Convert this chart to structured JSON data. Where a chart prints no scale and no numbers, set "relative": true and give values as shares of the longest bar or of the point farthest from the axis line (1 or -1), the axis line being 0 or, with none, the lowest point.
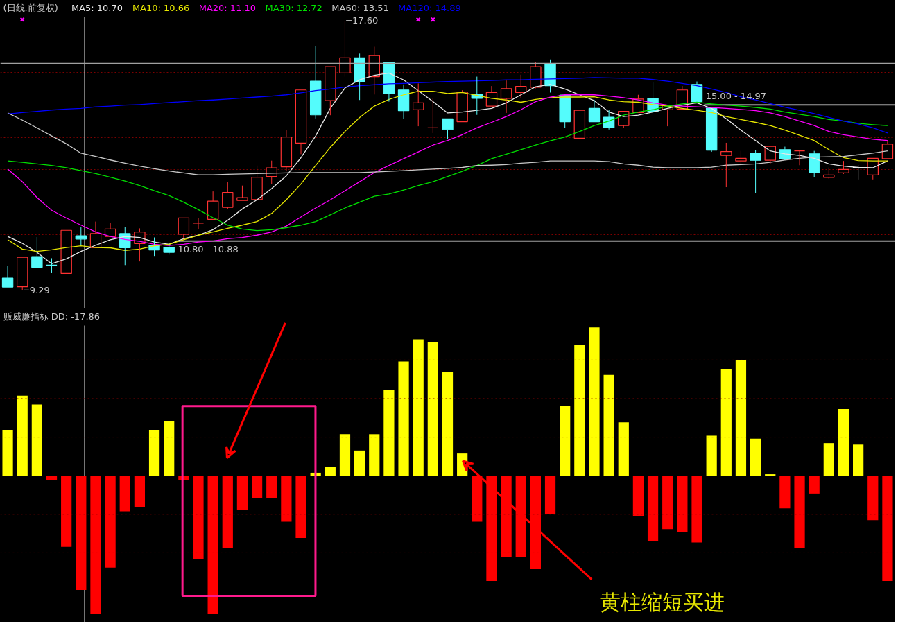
{
  "chart_data": [
    {
      "type": "candlestick",
      "title": "(日线.前复权)",
      "legend": "top left",
      "grid": "y",
      "tick_labels": false,
      "yticks": [
        {
          "value": 11,
          "label": null
        },
        {
          "value": 12,
          "label": null
        },
        {
          "value": 13,
          "label": null
        },
        {
          "value": 14,
          "label": null
        },
        {
          "value": 15,
          "label": null
        },
        {
          "value": 16,
          "label": null
        },
        {
          "value": 17,
          "label": null
        }
      ],
      "categories": [
        null,
        null,
        null,
        null,
        null,
        null,
        null,
        null,
        null,
        null,
        null,
        null,
        null,
        null,
        null,
        null,
        null,
        null,
        null,
        null,
        null,
        null,
        null,
        null,
        null,
        null,
        null,
        null,
        null,
        null,
        null,
        null,
        null,
        null,
        null,
        null,
        null,
        null,
        null,
        null,
        null,
        null,
        null,
        null,
        null,
        null,
        null,
        null,
        null,
        null,
        null,
        null,
        null,
        null,
        null,
        null,
        null,
        null,
        null,
        null,
        null
      ],
      "ohlc": [
        [
          9.66,
          10.03,
          9.38,
          9.38
        ],
        [
          9.39,
          10.3,
          9.29,
          10.3
        ],
        [
          10.32,
          10.92,
          9.99,
          9.99
        ],
        [
          10.06,
          10.27,
          9.81,
          10.06
        ],
        [
          9.8,
          11.13,
          9.8,
          11.13
        ],
        [
          10.96,
          11.22,
          10.66,
          10.86
        ],
        [
          10.6,
          11.4,
          10.6,
          11.03
        ],
        [
          10.94,
          11.37,
          10.94,
          11.17
        ],
        [
          11.03,
          11.24,
          10.06,
          10.59
        ],
        [
          10.72,
          11.19,
          10.17,
          11.08
        ],
        [
          10.67,
          10.91,
          10.34,
          10.52
        ],
        [
          10.61,
          10.73,
          10.38,
          10.45
        ],
        [
          11.01,
          11.51,
          10.87,
          11.51
        ],
        [
          11.35,
          11.51,
          11.17,
          11.35
        ],
        [
          11.47,
          12.33,
          11.47,
          12.03
        ],
        [
          11.84,
          12.61,
          11.79,
          12.3
        ],
        [
          12.05,
          12.51,
          12.05,
          12.14
        ],
        [
          12.08,
          13.13,
          12.08,
          12.77
        ],
        [
          12.79,
          13.28,
          12.56,
          13.06
        ],
        [
          13.09,
          14.22,
          12.95,
          14.01
        ],
        [
          13.82,
          15.46,
          13.48,
          15.46
        ],
        [
          15.73,
          16.81,
          14.58,
          14.69
        ],
        [
          15.13,
          16.18,
          14.68,
          16.18
        ],
        [
          15.98,
          17.6,
          15.87,
          16.45
        ],
        [
          16.45,
          16.58,
          15.15,
          15.72
        ],
        [
          15.87,
          16.79,
          15.32,
          16.52
        ],
        [
          16.31,
          16.31,
          15.1,
          15.35
        ],
        [
          15.46,
          15.63,
          14.57,
          14.82
        ],
        [
          14.85,
          15.66,
          14.34,
          15.06
        ],
        [
          14.29,
          15.2,
          14.13,
          14.29
        ],
        [
          14.57,
          14.57,
          13.94,
          14.24
        ],
        [
          14.48,
          15.45,
          14.48,
          15.39
        ],
        [
          15.32,
          15.87,
          14.69,
          15.2
        ],
        [
          14.96,
          15.58,
          14.96,
          15.38
        ],
        [
          15.2,
          15.75,
          14.75,
          15.5
        ],
        [
          15.38,
          15.93,
          15.2,
          15.57
        ],
        [
          15.54,
          16.33,
          15.51,
          16.18
        ],
        [
          16.26,
          16.4,
          15.38,
          15.59
        ],
        [
          15.3,
          15.3,
          14.29,
          14.48
        ],
        [
          13.97,
          14.83,
          13.97,
          14.83
        ],
        [
          14.89,
          15.15,
          14.48,
          14.48
        ],
        [
          14.62,
          14.85,
          14.24,
          14.29
        ],
        [
          14.36,
          14.8,
          14.29,
          14.8
        ],
        [
          14.76,
          15.31,
          14.76,
          15.18
        ],
        [
          15.2,
          15.7,
          14.75,
          14.8
        ],
        [
          14.85,
          14.99,
          14.34,
          14.99
        ],
        [
          14.87,
          15.58,
          14.87,
          15.46
        ],
        [
          15.63,
          15.72,
          15.1,
          15.1
        ],
        [
          14.9,
          14.9,
          13.55,
          13.6
        ],
        [
          13.44,
          13.83,
          12.46,
          13.56
        ],
        [
          13.27,
          13.58,
          13.18,
          13.35
        ],
        [
          13.51,
          13.61,
          12.28,
          13.29
        ],
        [
          13.29,
          13.72,
          13.18,
          13.72
        ],
        [
          13.62,
          13.71,
          13.3,
          13.35
        ],
        [
          13.58,
          13.58,
          13.14,
          13.58
        ],
        [
          13.49,
          13.58,
          12.76,
          12.9
        ],
        [
          12.76,
          13.07,
          12.72,
          12.84
        ],
        [
          12.9,
          13.27,
          12.87,
          13.01
        ],
        [
          13.07,
          13.14,
          12.7,
          13.07
        ],
        [
          12.84,
          13.35,
          12.7,
          13.35
        ],
        [
          13.34,
          13.89,
          13.34,
          13.79
        ]
      ],
      "colors": [
        "#54fcfc",
        "#ff3232",
        "#54fcfc",
        "#54fcfc",
        "#ff3232",
        "#54fcfc",
        "#ff3232",
        "#ff3232",
        "#54fcfc",
        "#ff3232",
        "#54fcfc",
        "#54fcfc",
        "#ff3232",
        "#ff3232",
        "#ff3232",
        "#ff3232",
        "#ff3232",
        "#ff3232",
        "#ff3232",
        "#ff3232",
        "#ff3232",
        "#54fcfc",
        "#ff3232",
        "#ff3232",
        "#54fcfc",
        "#ff3232",
        "#54fcfc",
        "#54fcfc",
        "#ff3232",
        "#ff3232",
        "#54fcfc",
        "#ff3232",
        "#54fcfc",
        "#ff3232",
        "#ff3232",
        "#ff3232",
        "#ff3232",
        "#54fcfc",
        "#54fcfc",
        "#ff3232",
        "#54fcfc",
        "#54fcfc",
        "#ff3232",
        "#ff3232",
        "#54fcfc",
        "#ff3232",
        "#ff3232",
        "#54fcfc",
        "#54fcfc",
        "#ff3232",
        "#ff3232",
        "#54fcfc",
        "#ff3232",
        "#54fcfc",
        "#ff3232",
        "#54fcfc",
        "#ff3232",
        "#ff3232",
        "#ffffff",
        "#ff3232",
        "#ff3232"
      ],
      "series": [
        {
          "type": "line",
          "name": "MA5: 10.70",
          "color": "#e8e8e8",
          "values": [
            10.94,
            10.73,
            10.45,
            10.1,
            10.25,
            10.48,
            10.67,
            10.84,
            10.94,
            10.91,
            10.77,
            10.7,
            10.87,
            10.98,
            11.15,
            11.44,
            11.79,
            12.07,
            12.42,
            12.81,
            13.37,
            14.04,
            14.89,
            15.52,
            15.77,
            15.91,
            15.98,
            15.77,
            15.44,
            15.1,
            14.75,
            14.78,
            14.83,
            14.89,
            15.06,
            15.31,
            15.56,
            15.63,
            15.49,
            15.31,
            15.13,
            14.78,
            14.64,
            14.68,
            14.78,
            14.89,
            14.99,
            15.06,
            14.89,
            14.57,
            14.22,
            13.9,
            13.58,
            13.49,
            13.44,
            13.35,
            13.18,
            13.11,
            13.07,
            13.06,
            13.27
          ]
        },
        {
          "type": "line",
          "name": "MA10: 10.66",
          "color": "#e6e600",
          "values": [
            10.84,
            10.55,
            10.48,
            10.53,
            10.6,
            10.65,
            10.6,
            10.59,
            10.51,
            10.55,
            10.65,
            10.7,
            10.84,
            10.98,
            11.08,
            11.19,
            11.29,
            11.4,
            11.65,
            12.07,
            12.56,
            13.13,
            13.69,
            14.18,
            14.61,
            14.96,
            15.17,
            15.31,
            15.42,
            15.42,
            15.35,
            15.38,
            15.29,
            15.2,
            15.15,
            15.08,
            15.17,
            15.22,
            15.24,
            15.24,
            15.25,
            15.15,
            15.1,
            15.08,
            15.01,
            14.96,
            14.89,
            14.83,
            14.76,
            14.64,
            14.55,
            14.46,
            14.36,
            14.22,
            14.06,
            13.9,
            13.62,
            13.37,
            13.28,
            13.27,
            13.27
          ]
        },
        {
          "type": "line",
          "name": "MA20: 11.10",
          "color": "#ff00ff",
          "values": [
            13.02,
            12.63,
            12.14,
            11.75,
            11.51,
            11.29,
            11.08,
            10.94,
            10.85,
            10.79,
            10.7,
            10.66,
            10.7,
            10.77,
            10.8,
            10.87,
            10.91,
            10.98,
            11.08,
            11.26,
            11.54,
            11.82,
            12.07,
            12.35,
            12.63,
            12.91,
            13.13,
            13.34,
            13.55,
            13.76,
            13.9,
            14.08,
            14.29,
            14.46,
            14.64,
            14.85,
            15.1,
            15.24,
            15.31,
            15.31,
            15.31,
            15.27,
            15.22,
            15.15,
            15.06,
            14.99,
            14.96,
            14.94,
            14.92,
            14.89,
            14.86,
            14.82,
            14.75,
            14.64,
            14.5,
            14.36,
            14.18,
            14.08,
            14.01,
            13.94,
            13.9
          ]
        },
        {
          "type": "line",
          "name": "MA30: 12.72",
          "color": "#00e000",
          "values": [
            13.27,
            13.23,
            13.18,
            13.13,
            13.06,
            12.97,
            12.88,
            12.77,
            12.65,
            12.51,
            12.35,
            12.2,
            12.0,
            11.77,
            11.52,
            11.29,
            11.17,
            11.12,
            11.15,
            11.21,
            11.29,
            11.4,
            11.61,
            11.82,
            12.0,
            12.18,
            12.25,
            12.37,
            12.51,
            12.63,
            12.79,
            12.95,
            13.13,
            13.34,
            13.48,
            13.62,
            13.76,
            13.89,
            14.01,
            14.18,
            14.36,
            14.5,
            14.68,
            14.78,
            14.85,
            14.96,
            15.03,
            15.08,
            15.03,
            14.99,
            14.96,
            14.92,
            14.87,
            14.78,
            14.71,
            14.64,
            14.55,
            14.5,
            14.43,
            14.39,
            14.36
          ]
        },
        {
          "type": "line",
          "name": "MA60: 13.51",
          "color": "#c8c8c8",
          "values": [
            14.75,
            14.53,
            14.29,
            14.04,
            13.8,
            13.51,
            13.41,
            13.3,
            13.2,
            13.11,
            13.03,
            12.96,
            12.9,
            12.84,
            12.84,
            12.86,
            12.87,
            12.88,
            12.89,
            12.9,
            12.91,
            12.91,
            12.91,
            12.91,
            12.91,
            12.93,
            12.95,
            12.97,
            13.0,
            13.02,
            13.04,
            13.07,
            13.13,
            13.14,
            13.16,
            13.2,
            13.23,
            13.27,
            13.27,
            13.27,
            13.27,
            13.25,
            13.18,
            13.14,
            13.08,
            13.06,
            13.06,
            13.06,
            13.08,
            13.14,
            13.16,
            13.18,
            13.23,
            13.3,
            13.35,
            13.39,
            13.4,
            13.41,
            13.46,
            13.51,
            13.58
          ]
        },
        {
          "type": "line",
          "name": "MA120: 14.89",
          "color": "#0000ff",
          "values": [
            14.72,
            14.76,
            14.8,
            14.84,
            14.87,
            14.89,
            14.94,
            14.96,
            14.99,
            15.01,
            15.04,
            15.07,
            15.1,
            15.13,
            15.15,
            15.18,
            15.21,
            15.24,
            15.27,
            15.31,
            15.37,
            15.44,
            15.49,
            15.55,
            15.59,
            15.62,
            15.65,
            15.66,
            15.68,
            15.7,
            15.72,
            15.73,
            15.74,
            15.75,
            15.77,
            15.77,
            15.79,
            15.8,
            15.81,
            15.82,
            15.84,
            15.83,
            15.82,
            15.82,
            15.78,
            15.73,
            15.66,
            15.59,
            15.49,
            15.38,
            15.25,
            15.15,
            15.04,
            14.93,
            14.83,
            14.73,
            14.61,
            14.5,
            14.41,
            14.29,
            14.13
          ]
        },
        {
          "type": "scatter",
          "color": "#ff00ff",
          "marker": "cross",
          "values": [
            null,
            17.63,
            null,
            null,
            null,
            null,
            null,
            null,
            null,
            null,
            null,
            null,
            null,
            null,
            null,
            null,
            null,
            null,
            null,
            null,
            null,
            null,
            null,
            null,
            null,
            null,
            null,
            null,
            17.63,
            17.63,
            null,
            null,
            null,
            null,
            null,
            null,
            null,
            null,
            null,
            null,
            null,
            null,
            null,
            null,
            null,
            null,
            null,
            null,
            null,
            null,
            null,
            null,
            null,
            null,
            null,
            null,
            null,
            null,
            null,
            null,
            null
          ]
        }
      ],
      "ref_lines": [
        {
          "axis": "y",
          "value": 16.28,
          "color": "#a0a0a0"
        },
        {
          "axis": "y",
          "value": 15.0,
          "label": "15.00 - 14.97",
          "color": "#a0a0a0"
        },
        {
          "axis": "y",
          "value": 10.8,
          "label": "10.80 - 10.88",
          "color": "#a0a0a0"
        }
      ],
      "annotations": [
        "17.60",
        "9.29"
      ]
    },
    {
      "type": "bar",
      "title": "贩威廉指标 DD: -17.86",
      "relative": true,
      "tick_labels": false,
      "categories": [
        null,
        null,
        null,
        null,
        null,
        null,
        null,
        null,
        null,
        null,
        null,
        null,
        null,
        null,
        null,
        null,
        null,
        null,
        null,
        null,
        null,
        null,
        null,
        null,
        null,
        null,
        null,
        null,
        null,
        null,
        null,
        null,
        null,
        null,
        null,
        null,
        null,
        null,
        null,
        null,
        null,
        null,
        null,
        null,
        null,
        null,
        null,
        null,
        null,
        null,
        null,
        null,
        null,
        null,
        null,
        null,
        null,
        null,
        null,
        null,
        null
      ],
      "values": [
        0.31,
        0.54,
        0.48,
        -0.03,
        -0.48,
        -0.77,
        -0.93,
        -0.62,
        -0.24,
        -0.21,
        0.31,
        0.37,
        -0.03,
        -0.56,
        -0.93,
        -0.49,
        -0.23,
        -0.15,
        -0.15,
        -0.31,
        -0.42,
        0.02,
        0.06,
        0.28,
        0.17,
        0.28,
        0.58,
        0.77,
        0.92,
        0.9,
        0.7,
        0.15,
        -0.31,
        -0.71,
        -0.55,
        -0.55,
        -0.63,
        -0.26,
        0.47,
        0.88,
        1,
        0.68,
        0.36,
        -0.27,
        -0.44,
        -0.36,
        -0.38,
        -0.45,
        0.27,
        0.72,
        0.78,
        0.25,
        0.01,
        -0.22,
        -0.49,
        -0.12,
        0.22,
        0.45,
        0.21,
        -0.3,
        -0.71
      ],
      "colors": [
        "#ffff00",
        "#ffff00",
        "#ffff00",
        "#ff0000",
        "#ff0000",
        "#ff0000",
        "#ff0000",
        "#ff0000",
        "#ff0000",
        "#ff0000",
        "#ffff00",
        "#ffff00",
        "#ff0000",
        "#ff0000",
        "#ff0000",
        "#ff0000",
        "#ff0000",
        "#ff0000",
        "#ff0000",
        "#ff0000",
        "#ff0000",
        "#ffff00",
        "#ffff00",
        "#ffff00",
        "#ffff00",
        "#ffff00",
        "#ffff00",
        "#ffff00",
        "#ffff00",
        "#ffff00",
        "#ffff00",
        "#ffff00",
        "#ff0000",
        "#ff0000",
        "#ff0000",
        "#ff0000",
        "#ff0000",
        "#ff0000",
        "#ffff00",
        "#ffff00",
        "#ffff00",
        "#ffff00",
        "#ffff00",
        "#ff0000",
        "#ff0000",
        "#ff0000",
        "#ff0000",
        "#ff0000",
        "#ffff00",
        "#ffff00",
        "#ffff00",
        "#ffff00",
        "#ffff00",
        "#ff0000",
        "#ff0000",
        "#ff0000",
        "#ffff00",
        "#ffff00",
        "#ffff00",
        "#ff0000",
        "#ff0000"
      ],
      "ref_lines": [
        {
          "axis": "y",
          "value": 0.78,
          "color": "#800000",
          "line_style": "dotted"
        },
        {
          "axis": "y",
          "value": 0.52,
          "color": "#800000",
          "line_style": "dotted"
        },
        {
          "axis": "y",
          "value": 0.26,
          "color": "#800000",
          "line_style": "dotted"
        },
        {
          "axis": "y",
          "value": -0.26,
          "color": "#800000",
          "line_style": "dotted"
        },
        {
          "axis": "y",
          "value": -0.52,
          "color": "#800000",
          "line_style": "dotted"
        }
      ],
      "annotations": [
        "黄柱缩短买进"
      ]
    }
  ]
}
